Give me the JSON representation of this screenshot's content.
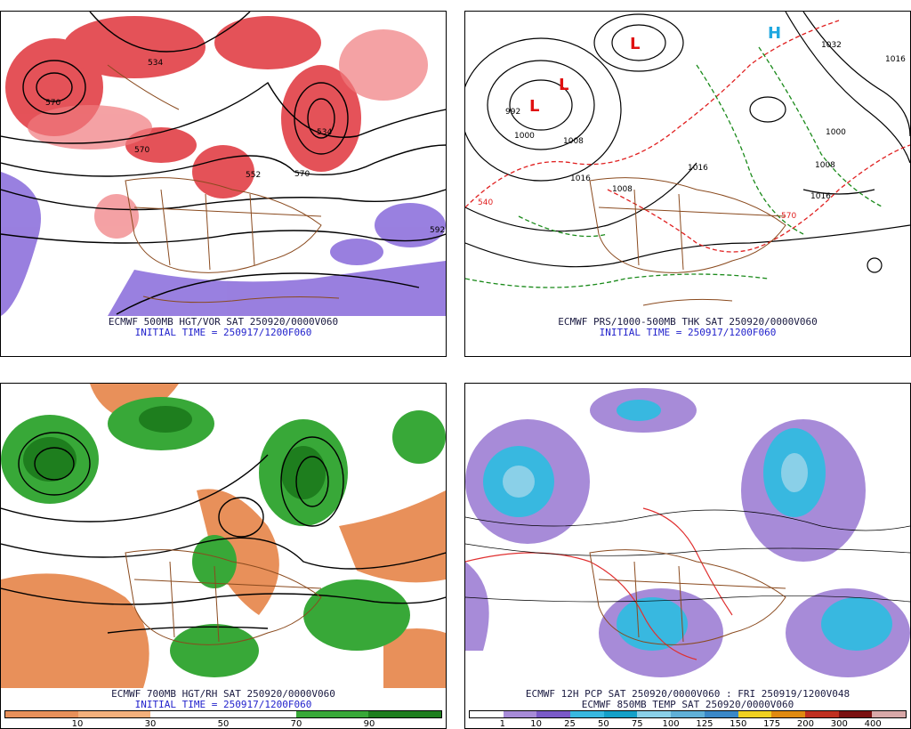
{
  "panels": [
    {
      "id": "500mb",
      "caption_line1": "ECMWF 500MB HGT/VOR SAT 250920/0000V060",
      "caption_line2": "INITIAL TIME = 250917/1200F060",
      "contour_labels": [
        "534",
        "570",
        "534",
        "552",
        "570",
        "592",
        "570"
      ]
    },
    {
      "id": "sfc",
      "caption_line1": "ECMWF PRS/1000-500MB THK SAT 250920/0000V060",
      "caption_line2": "INITIAL TIME = 250917/1200F060",
      "contour_labels": [
        "992",
        "1000",
        "1008",
        "1016",
        "1008",
        "1016",
        "1032",
        "1016",
        "1008",
        "1000",
        "540",
        "570",
        "1016"
      ]
    },
    {
      "id": "700mb",
      "caption_line1": "ECMWF 700MB HGT/RH SAT 250920/0000V060",
      "caption_line2": "INITIAL TIME = 250917/1200F060",
      "colorbar": {
        "colors": [
          "#e8905a",
          "#f4b07c",
          "#ffffff",
          "#ffffff",
          "#38a838",
          "#1e7e1e"
        ],
        "ticks": [
          "10",
          "30",
          "50",
          "70",
          "90"
        ]
      }
    },
    {
      "id": "pcp",
      "caption_line1": "ECMWF 12H PCP SAT 250920/0000V060 : FRI 250919/1200V048",
      "caption_line2": "ECMWF 850MB TEMP SAT 250920/0000V060",
      "colorbar": {
        "colors": [
          "#ffffff",
          "#a78bd8",
          "#7a5ac8",
          "#38b8e0",
          "#14a0c8",
          "#8ad0e8",
          "#60b0d8",
          "#3a88c8",
          "#f0d020",
          "#e08a10",
          "#c03020",
          "#7a1010",
          "#d8a8a8"
        ],
        "ticks": [
          "1",
          "10",
          "25",
          "50",
          "75",
          "100",
          "125",
          "150",
          "175",
          "200",
          "300",
          "400"
        ]
      }
    }
  ]
}
